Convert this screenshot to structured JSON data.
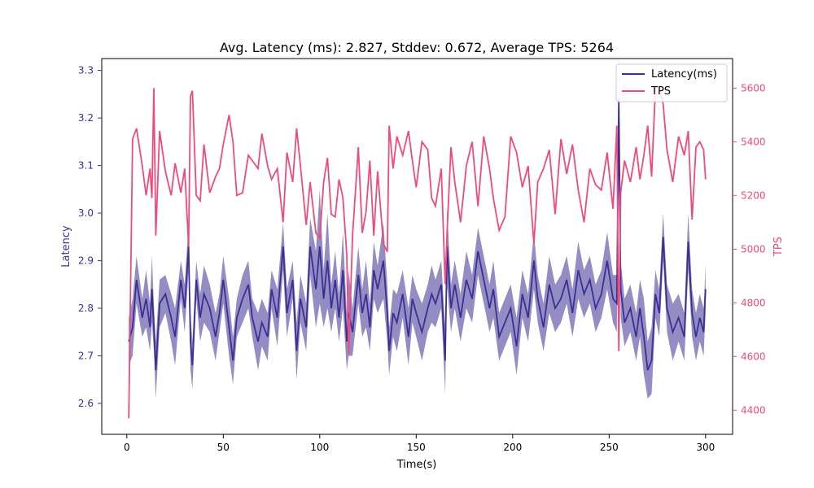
{
  "chart_data": {
    "type": "line",
    "title": "Avg. Latency (ms): 2.827, Stddev: 0.672, Average TPS: 5264",
    "xlabel": "Time(s)",
    "ylabel_left": "Latency",
    "ylabel_right": "TPS",
    "xlim": [
      -13,
      314
    ],
    "ylim_left": [
      2.535,
      3.325
    ],
    "ylim_right": [
      4310,
      5710
    ],
    "x_ticks": [
      0,
      50,
      100,
      150,
      200,
      250,
      300
    ],
    "y_left_ticks": [
      2.6,
      2.7,
      2.8,
      2.9,
      3.0,
      3.1,
      3.2,
      3.3
    ],
    "y_right_ticks": [
      4400,
      4600,
      4800,
      5000,
      5200,
      5400,
      5600
    ],
    "legend_position": "top-right",
    "grid": false,
    "x": [
      1,
      3,
      5,
      8,
      10,
      12,
      13,
      14,
      15,
      17,
      20,
      23,
      25,
      28,
      30,
      32,
      33,
      34,
      36,
      38,
      40,
      43,
      46,
      48,
      50,
      53,
      55,
      57,
      60,
      63,
      65,
      68,
      70,
      73,
      75,
      78,
      81,
      83,
      86,
      88,
      90,
      93,
      95,
      98,
      100,
      102,
      104,
      106,
      108,
      110,
      112,
      114,
      115,
      117,
      120,
      122,
      124,
      126,
      128,
      130,
      133,
      135,
      136,
      138,
      140,
      143,
      146,
      148,
      150,
      153,
      156,
      158,
      160,
      163,
      165,
      166,
      168,
      170,
      173,
      176,
      179,
      182,
      185,
      188,
      190,
      193,
      196,
      199,
      202,
      205,
      208,
      211,
      213,
      216,
      219,
      222,
      225,
      228,
      231,
      234,
      237,
      240,
      243,
      246,
      249,
      252,
      254,
      255,
      256,
      258,
      261,
      264,
      266,
      268,
      270,
      272,
      274,
      276,
      278,
      280,
      283,
      286,
      289,
      291,
      293,
      295,
      297,
      299,
      300
    ],
    "series": [
      {
        "name": "Latency(ms)",
        "axis": "left",
        "color": "#3c2f93",
        "band_color": "#3c2f93",
        "values": [
          2.73,
          2.76,
          2.86,
          2.78,
          2.82,
          2.76,
          2.84,
          2.76,
          2.67,
          2.81,
          2.83,
          2.78,
          2.74,
          2.86,
          2.8,
          2.93,
          2.73,
          2.68,
          2.86,
          2.78,
          2.83,
          2.8,
          2.74,
          2.79,
          2.86,
          2.76,
          2.69,
          2.78,
          2.82,
          2.85,
          2.78,
          2.73,
          2.77,
          2.74,
          2.84,
          2.78,
          2.93,
          2.79,
          2.86,
          2.71,
          2.82,
          2.76,
          2.93,
          2.84,
          2.93,
          2.82,
          2.9,
          2.8,
          2.86,
          2.78,
          2.88,
          2.73,
          2.79,
          2.75,
          2.87,
          2.79,
          2.83,
          2.76,
          2.88,
          2.84,
          2.9,
          2.79,
          2.71,
          2.79,
          2.77,
          2.83,
          2.74,
          2.82,
          2.79,
          2.75,
          2.8,
          2.83,
          2.81,
          2.85,
          2.69,
          2.93,
          2.8,
          2.85,
          2.78,
          2.86,
          2.82,
          2.92,
          2.86,
          2.8,
          2.84,
          2.74,
          2.77,
          2.8,
          2.72,
          2.83,
          2.78,
          2.9,
          2.82,
          2.76,
          2.85,
          2.8,
          2.82,
          2.86,
          2.79,
          2.88,
          2.83,
          2.86,
          2.8,
          2.83,
          2.9,
          2.82,
          2.81,
          3.24,
          2.84,
          2.77,
          2.8,
          2.74,
          2.8,
          2.74,
          2.67,
          2.69,
          2.83,
          2.79,
          2.95,
          2.8,
          2.75,
          2.78,
          2.74,
          2.94,
          2.79,
          2.74,
          2.78,
          2.75,
          2.84
        ],
        "band_width": [
          0.05,
          0.06,
          0.05,
          0.04,
          0.06,
          0.05,
          0.07,
          0.05,
          0.06,
          0.05,
          0.04,
          0.05,
          0.06,
          0.04,
          0.05,
          0.05,
          0.06,
          0.05,
          0.04,
          0.05,
          0.06,
          0.05,
          0.05,
          0.04,
          0.05,
          0.06,
          0.05,
          0.04,
          0.05,
          0.05,
          0.04,
          0.06,
          0.05,
          0.05,
          0.04,
          0.06,
          0.05,
          0.05,
          0.04,
          0.06,
          0.05,
          0.05,
          0.06,
          0.08,
          0.12,
          0.06,
          0.1,
          0.05,
          0.06,
          0.05,
          0.08,
          0.06,
          0.09,
          0.05,
          0.06,
          0.05,
          0.07,
          0.05,
          0.06,
          0.05,
          0.08,
          0.06,
          0.05,
          0.05,
          0.06,
          0.05,
          0.06,
          0.05,
          0.05,
          0.06,
          0.05,
          0.06,
          0.05,
          0.05,
          0.07,
          0.08,
          0.05,
          0.05,
          0.05,
          0.06,
          0.05,
          0.05,
          0.05,
          0.05,
          0.06,
          0.05,
          0.05,
          0.05,
          0.06,
          0.05,
          0.05,
          0.06,
          0.05,
          0.05,
          0.06,
          0.05,
          0.05,
          0.05,
          0.05,
          0.06,
          0.05,
          0.05,
          0.05,
          0.05,
          0.06,
          0.05,
          0.06,
          0.09,
          0.06,
          0.05,
          0.05,
          0.05,
          0.06,
          0.08,
          0.06,
          0.07,
          0.05,
          0.05,
          0.05,
          0.05,
          0.06,
          0.05,
          0.05,
          0.06,
          0.05,
          0.05,
          0.05,
          0.05,
          0.05
        ]
      },
      {
        "name": "TPS",
        "axis": "right",
        "color": "#ef4a7a",
        "values": [
          4370,
          5410,
          5450,
          5310,
          5200,
          5300,
          5190,
          5600,
          5050,
          5440,
          5290,
          5200,
          5320,
          5210,
          5300,
          5010,
          5570,
          5590,
          5200,
          5180,
          5390,
          5210,
          5270,
          5300,
          5390,
          5500,
          5400,
          5200,
          5210,
          5350,
          5330,
          5300,
          5430,
          5310,
          5260,
          5300,
          5100,
          5360,
          5250,
          5450,
          5310,
          5090,
          5250,
          5060,
          5040,
          5250,
          5340,
          5130,
          5120,
          5260,
          5190,
          4980,
          4610,
          5050,
          5380,
          5060,
          5140,
          5330,
          5050,
          5290,
          5020,
          4990,
          5460,
          5300,
          5420,
          5350,
          5440,
          5330,
          5230,
          5400,
          5370,
          5190,
          5160,
          5300,
          4870,
          5060,
          5380,
          5250,
          5100,
          5310,
          5400,
          5160,
          5420,
          5300,
          5190,
          5070,
          5120,
          5420,
          5360,
          5230,
          5310,
          5020,
          5250,
          5300,
          5370,
          5130,
          5410,
          5280,
          5390,
          5220,
          5100,
          5300,
          5240,
          5220,
          5360,
          5150,
          5460,
          4620,
          5210,
          5330,
          5250,
          5380,
          5260,
          5350,
          5460,
          5270,
          5600,
          5610,
          5540,
          5370,
          5250,
          5420,
          5350,
          5440,
          5110,
          5380,
          5400,
          5370,
          5260
        ]
      }
    ]
  }
}
